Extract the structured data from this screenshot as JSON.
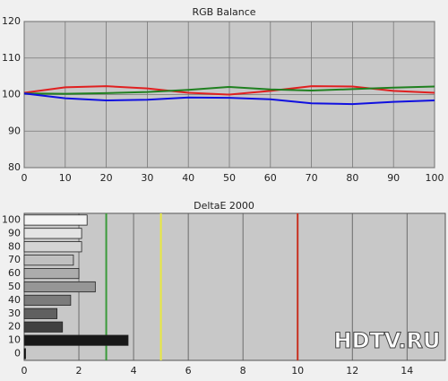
{
  "chart_data": [
    {
      "type": "line",
      "title": "RGB Balance",
      "x": [
        0,
        10,
        20,
        30,
        40,
        50,
        60,
        70,
        80,
        90,
        100
      ],
      "series": [
        {
          "name": "Red",
          "color": "#e02020",
          "values": [
            100.5,
            102,
            102.3,
            101.7,
            100.5,
            100,
            101,
            102.3,
            102.2,
            101,
            100.5
          ]
        },
        {
          "name": "Green",
          "color": "#208020",
          "values": [
            100.3,
            100.2,
            100.4,
            100.7,
            101.3,
            102.1,
            101.4,
            101.1,
            101.5,
            101.9,
            102.2
          ]
        },
        {
          "name": "Blue",
          "color": "#1010e0",
          "values": [
            100.3,
            99,
            98.4,
            98.6,
            99.2,
            99.1,
            98.7,
            97.6,
            97.4,
            98,
            98.4
          ]
        }
      ],
      "xlim": [
        0,
        100
      ],
      "xticks": [
        0,
        10,
        20,
        30,
        40,
        50,
        60,
        70,
        80,
        90,
        100
      ],
      "ylim": [
        80,
        120
      ],
      "yticks": [
        80,
        90,
        100,
        110,
        120
      ],
      "grid": true
    },
    {
      "type": "hbar",
      "title": "DeltaE 2000",
      "categories": [
        "100",
        "90",
        "80",
        "70",
        "60",
        "50",
        "40",
        "30",
        "20",
        "10",
        "0"
      ],
      "values": [
        2.3,
        2.1,
        2.1,
        1.8,
        2.0,
        2.6,
        1.7,
        1.2,
        1.4,
        3.8,
        0.05
      ],
      "bar_colors": [
        "#f4f4f4",
        "#e4e4e4",
        "#d4d4d4",
        "#c0c0c0",
        "#acacac",
        "#969696",
        "#7c7c7c",
        "#606060",
        "#404040",
        "#181818",
        "#000000"
      ],
      "reference_lines": [
        {
          "value": 3,
          "color": "#3a9a3a"
        },
        {
          "value": 5,
          "color": "#e8e840"
        },
        {
          "value": 10,
          "color": "#c83020"
        }
      ],
      "xlim": [
        0,
        15.4
      ],
      "xticks": [
        0,
        2,
        4,
        6,
        8,
        10,
        12,
        14
      ],
      "grid": true,
      "watermark": "HDTV.RU"
    }
  ]
}
